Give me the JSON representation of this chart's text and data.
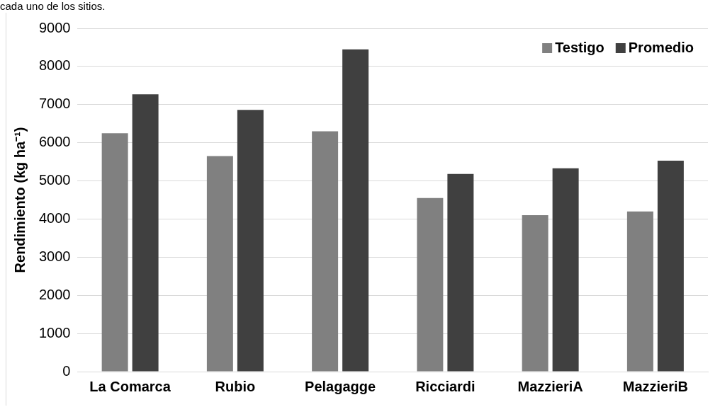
{
  "chart_data": {
    "type": "bar",
    "ylabel": "Rendimiento (kg ha⁻¹)",
    "annotations": [
      "cada uno de los sitios."
    ],
    "categories": [
      "La Comarca",
      "Rubio",
      "Pelagagge",
      "Ricciardi",
      "MazzieriA",
      "MazzieriB"
    ],
    "series": [
      {
        "name": "Testigo",
        "color": "#808080",
        "values": [
          6250,
          5650,
          6300,
          4550,
          4100,
          4200
        ]
      },
      {
        "name": "Promedio",
        "color": "#404040",
        "values": [
          7270,
          6860,
          8450,
          5180,
          5330,
          5530
        ]
      }
    ],
    "ylim": [
      0,
      9000
    ],
    "yticks": [
      0,
      1000,
      2000,
      3000,
      4000,
      5000,
      6000,
      7000,
      8000,
      9000
    ],
    "grid": "y",
    "legend": "top right"
  }
}
